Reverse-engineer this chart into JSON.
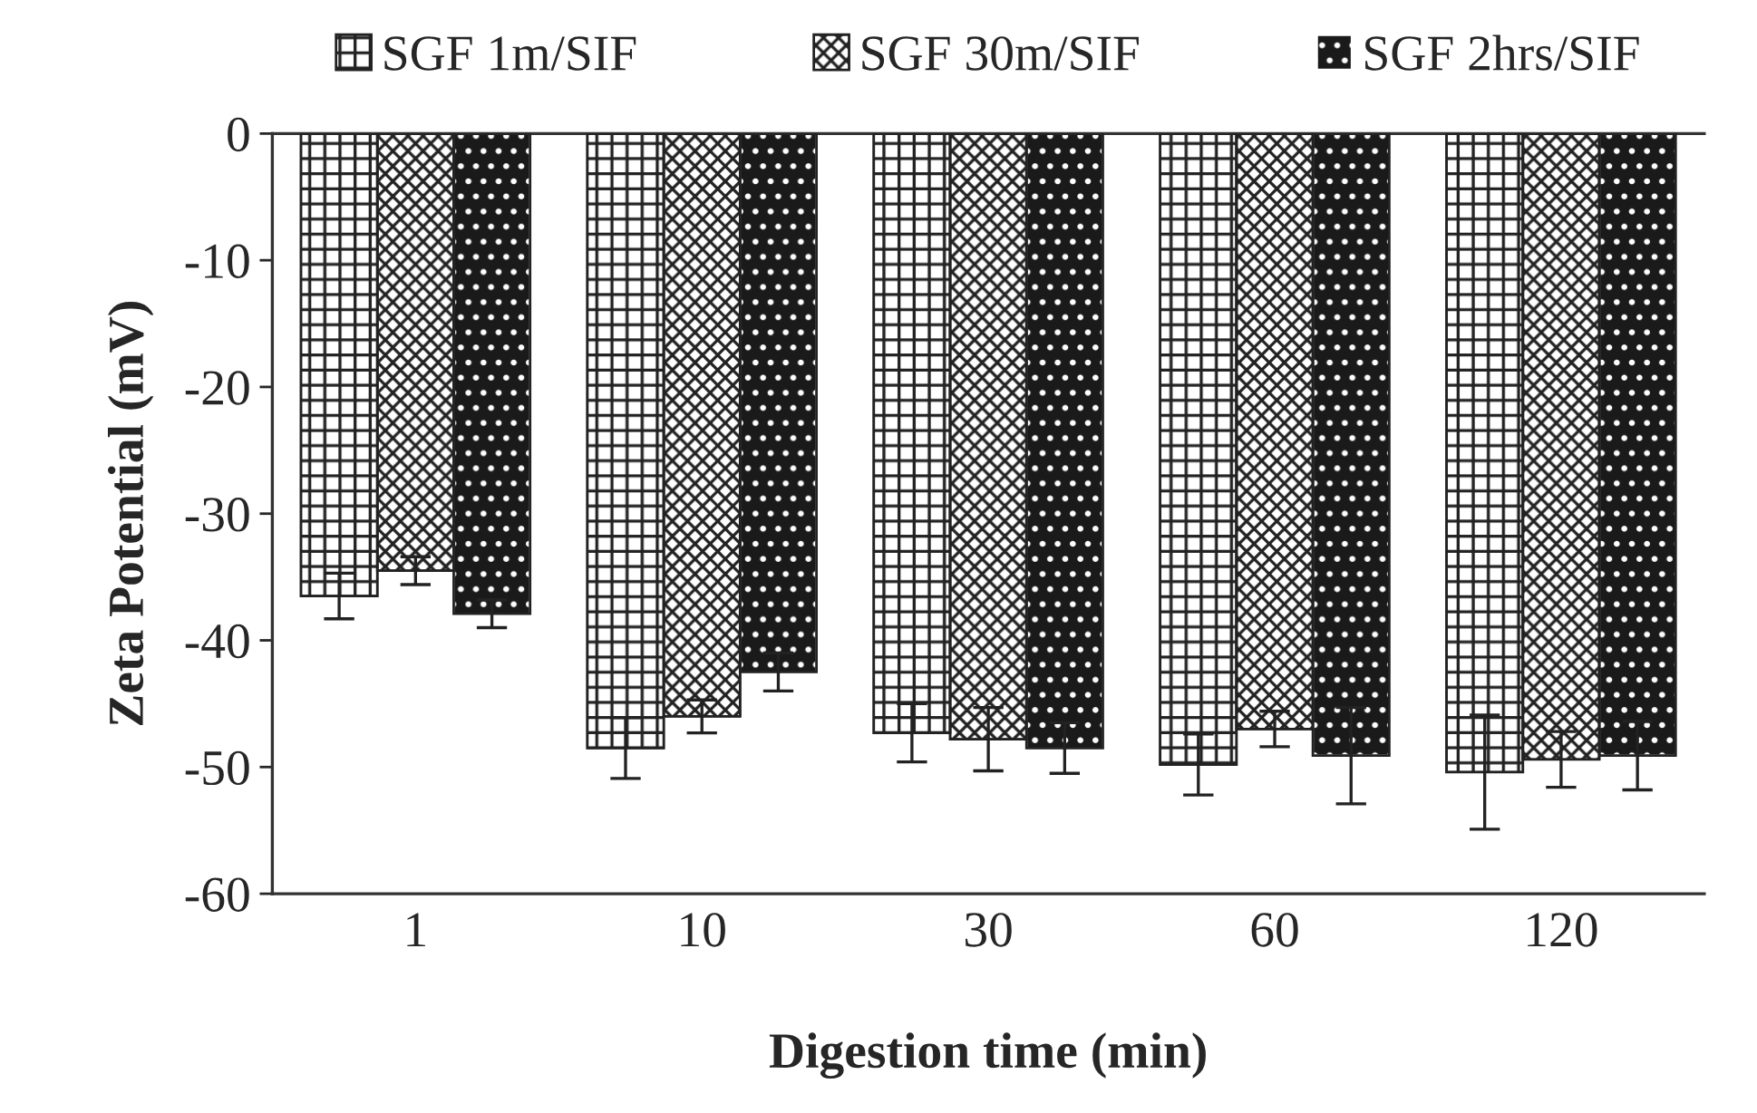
{
  "chart_data": {
    "type": "bar",
    "xlabel": "Digestion time (min)",
    "ylabel": "Zeta Potential (mV)",
    "categories": [
      "1",
      "10",
      "30",
      "60",
      "120"
    ],
    "series": [
      {
        "name": "SGF 1m/SIF",
        "color": "#222222",
        "values": [
          -36.5,
          -48.5,
          -47.3,
          -49.8,
          -50.4
        ],
        "errors": [
          1.8,
          2.4,
          2.3,
          2.4,
          4.5
        ]
      },
      {
        "name": "SGF 30m/SIF",
        "color": "#222222",
        "values": [
          -34.5,
          -46.0,
          -47.8,
          -47.0,
          -49.4
        ],
        "errors": [
          1.1,
          1.3,
          2.5,
          1.4,
          2.2
        ]
      },
      {
        "name": "SGF 2hrs/SIF",
        "color": "#1a1a1a",
        "values": [
          -37.9,
          -42.5,
          -48.5,
          -49.1,
          -49.1
        ],
        "errors": [
          1.1,
          1.5,
          2.0,
          3.8,
          2.7
        ]
      }
    ],
    "ylim": [
      -60,
      0
    ],
    "yticks": [
      -60,
      -50,
      -40,
      -30,
      -20,
      -10,
      0
    ],
    "grid": false,
    "legend": "top"
  }
}
